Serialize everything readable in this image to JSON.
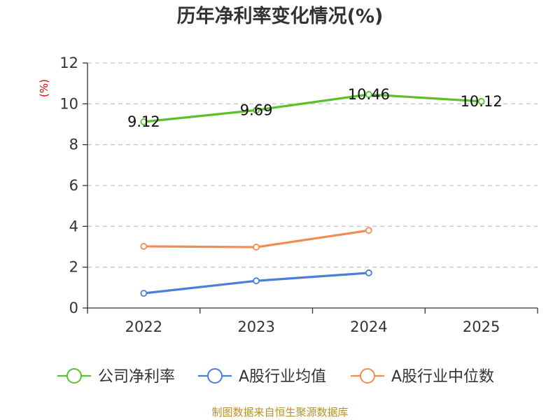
{
  "chart_data": {
    "type": "line",
    "title": "历年净利率变化情况(%)",
    "unit_label": "(%)",
    "categories": [
      "2022",
      "2023",
      "2024",
      "2025"
    ],
    "ylim": [
      0,
      12
    ],
    "yticks": [
      0,
      2,
      4,
      6,
      8,
      10,
      12
    ],
    "grid": true,
    "legend_position": "bottom",
    "series": [
      {
        "name": "公司净利率",
        "color": "#5cc02a",
        "values": [
          9.12,
          9.69,
          10.46,
          10.12
        ],
        "data_labels": [
          "9.12",
          "9.69",
          "10.46",
          "10.12"
        ]
      },
      {
        "name": "A股行业均值",
        "color": "#4a7ed8",
        "values": [
          0.72,
          1.33,
          1.72,
          null
        ]
      },
      {
        "name": "A股行业中位数",
        "color": "#f28c52",
        "values": [
          3.02,
          2.98,
          3.8,
          null
        ]
      }
    ],
    "source": "制图数据来自恒生聚源数据库"
  }
}
